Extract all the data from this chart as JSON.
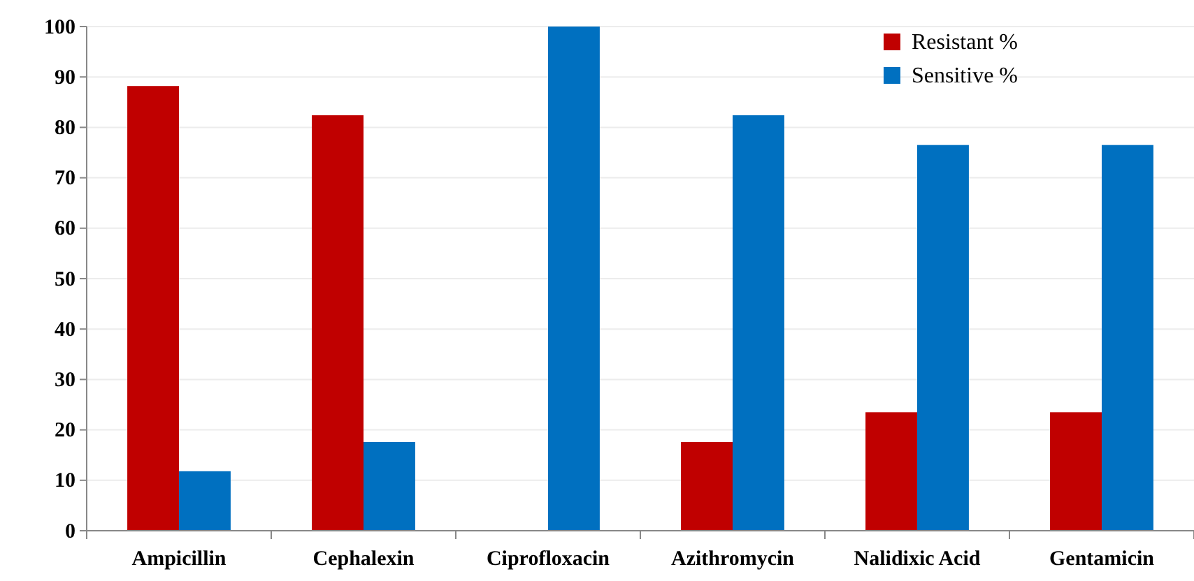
{
  "chart_data": {
    "type": "bar",
    "categories": [
      "Ampicillin",
      "Cephalexin",
      "Ciprofloxacin",
      "Azithromycin",
      "Nalidixic Acid",
      "Gentamicin"
    ],
    "series": [
      {
        "name": "Resistant %",
        "color": "#c00000",
        "values": [
          88.2,
          82.4,
          0,
          17.6,
          23.5,
          23.5
        ]
      },
      {
        "name": "Sensitive %",
        "color": "#0070c0",
        "values": [
          11.8,
          17.6,
          100,
          82.4,
          76.5,
          76.5
        ]
      }
    ],
    "ylim": [
      0,
      100
    ],
    "yticks": [
      0,
      10,
      20,
      30,
      40,
      50,
      60,
      70,
      80,
      90,
      100
    ],
    "grid": "y",
    "legend": "top right"
  }
}
